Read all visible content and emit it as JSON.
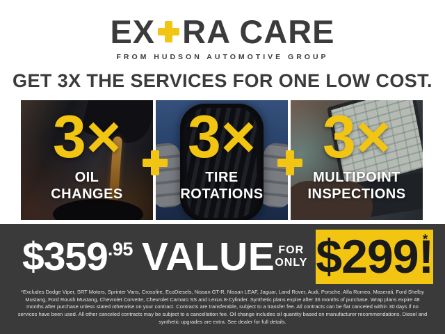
{
  "brand": {
    "logo_part1": "EX",
    "logo_part2": "RA CARE",
    "tagline": "FROM HUDSON AUTOMOTIVE GROUP"
  },
  "headline": "GET 3X THE SERVICES FOR ONE LOW COST.",
  "services": [
    {
      "multiplier": "3×",
      "label_line1": "OIL",
      "label_line2": "CHANGES",
      "photo": "oil-pour"
    },
    {
      "multiplier": "3×",
      "label_line1": "TIRE",
      "label_line2": "ROTATIONS",
      "photo": "tire-held-by-gloved-hands"
    },
    {
      "multiplier": "3×",
      "label_line1": "MULTIPOINT",
      "label_line2": "INSPECTIONS",
      "photo": "laptop-inspection-checklist"
    }
  ],
  "icons": {
    "logo_plus": "+",
    "panel_separator_plus": "+"
  },
  "pricing": {
    "value_dollars": "$359",
    "value_cents": ".95",
    "value_label": "VALUE",
    "for_line1": "FOR",
    "for_line2": "ONLY",
    "sale_price": "$299!",
    "sale_asterisk": "*"
  },
  "disclaimer": "*Excludes Dodge Viper, SRT Motors, Sprinter Vans, Crossfire, EcoDiesels, Nissan GT-R, Nissan LEAF, Jaguar, Land Rover, Audi, Porsche, Alfa Romeo, Maserati, Ford Shelby Mustang, Ford Roush Mustang, Chevrolet Corvette, Chevrolet Camaro SS and Lexus 8-Cylinder. Synthetic plans expire after 36 months of purchase. Wrap plans expire 48 months after purchase unless stated otherwise on your contract. Contracts are transferable, subject to a transfer fee. All contracts can be flat canceled within 30 days if no services have been used. All other canceled contracts may be subject to a cancellation fee. Oil change includes oil quantity based on manufacturer recommendations. Diesel and synthetic upgrades are extra. See dealer for full details.",
  "colors": {
    "accent_yellow": "#F2C512",
    "charcoal_text": "#3B3B3D",
    "band_background": "#3A3A3A",
    "sale_text": "#1A1A1A"
  }
}
